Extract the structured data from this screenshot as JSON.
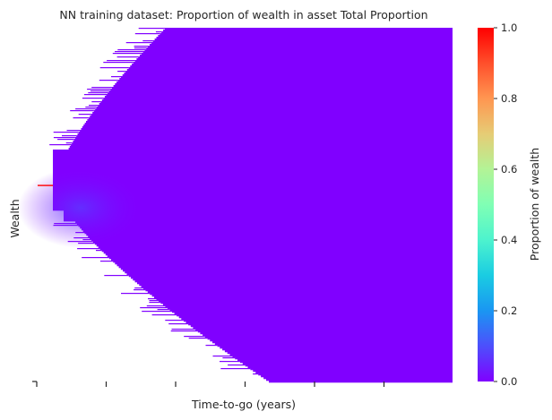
{
  "chart_data": {
    "type": "heatmap",
    "title": "NN training dataset: Proportion of wealth in asset Total Proportion",
    "xlabel": "Time-to-go (years)",
    "ylabel": "Wealth",
    "x_tick_labels": [],
    "y_tick_labels": [],
    "colorbar": {
      "label": "Proportion of wealth",
      "ticks": [
        0.0,
        0.2,
        0.4,
        0.6,
        0.8,
        1.0
      ],
      "tick_labels": [
        "0.0",
        "0.2",
        "0.4",
        "0.6",
        "0.8",
        "1.0"
      ],
      "range": [
        0.0,
        1.0
      ],
      "colormap": "rainbow"
    },
    "x_range": [
      0,
      1
    ],
    "value_summary": {
      "typical_value": 0.0,
      "max_value": 1.0
    },
    "colors": {
      "min": "#8000ff",
      "max": "#ff0000"
    }
  }
}
